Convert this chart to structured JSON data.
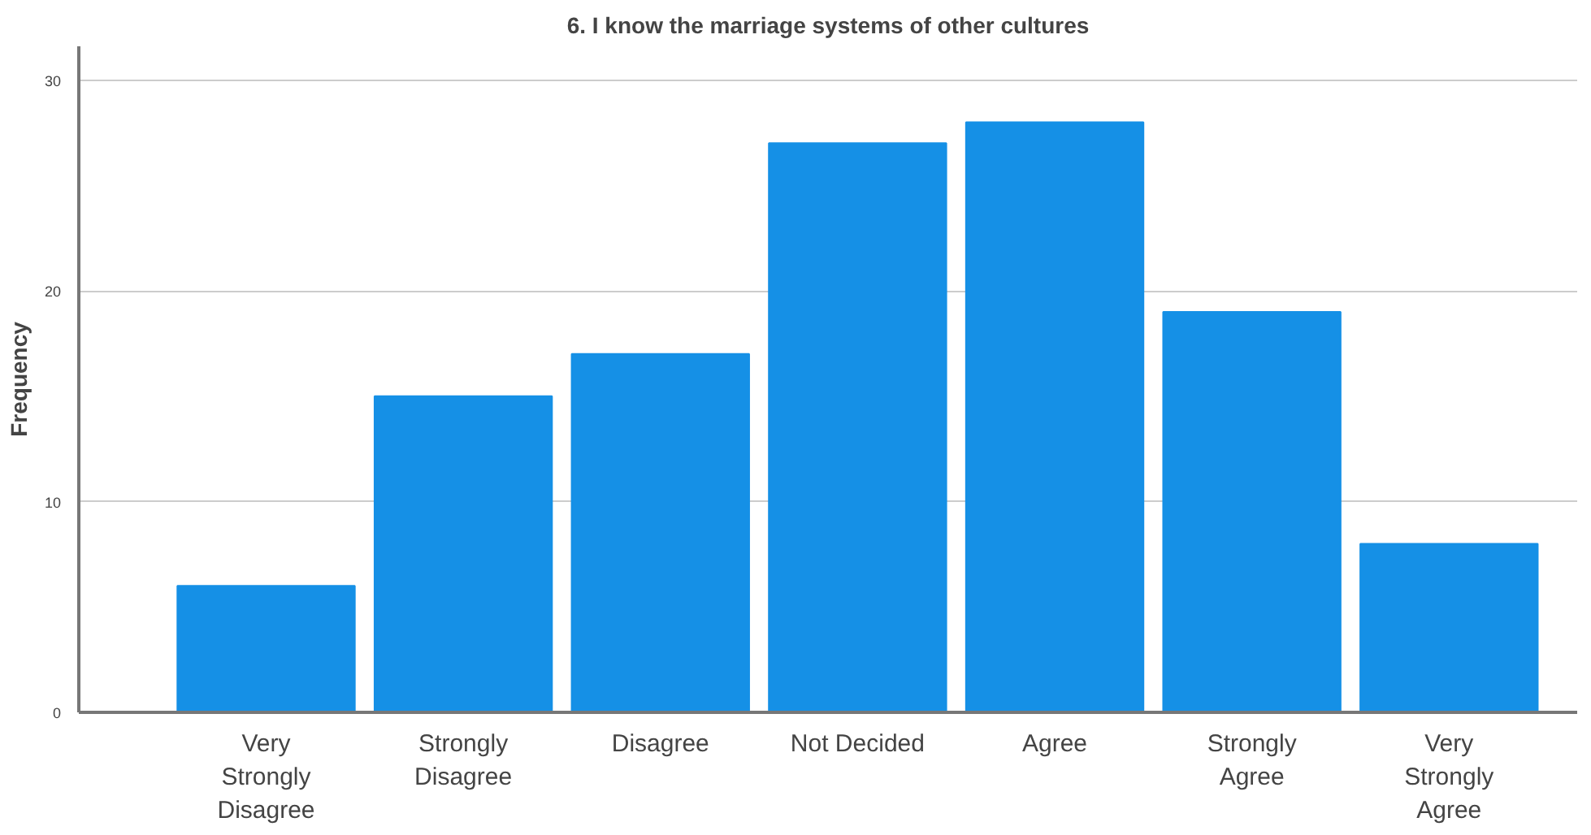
{
  "chart_data": {
    "type": "bar",
    "title": "6. I know the marriage systems of other cultures",
    "ylabel": "Frequency",
    "categories": [
      "Very Strongly Disagree",
      "Strongly Disagree",
      "Disagree",
      "Not Decided",
      "Agree",
      "Strongly Agree",
      "Very Strongly Agree"
    ],
    "values": [
      6,
      15,
      17,
      27,
      28,
      19,
      8
    ],
    "color": "#1590e6",
    "ylim": [
      0,
      31.6
    ],
    "yticks": [
      0,
      10,
      20,
      30
    ],
    "grid": "y"
  }
}
